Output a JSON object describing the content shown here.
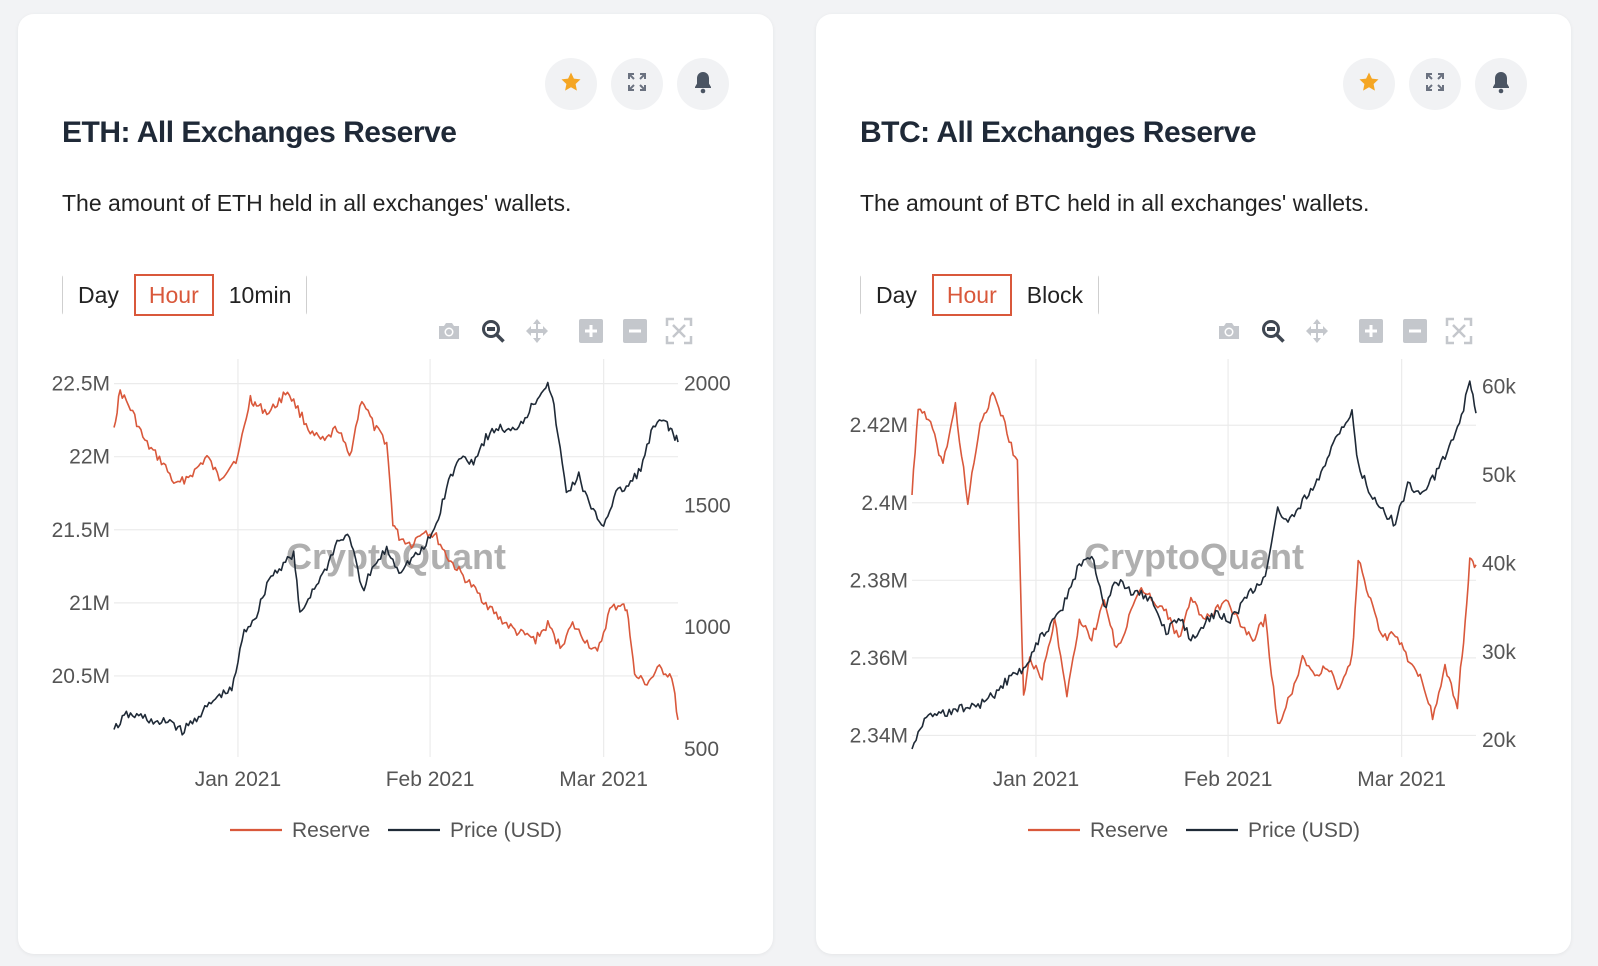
{
  "watermark": "CryptoQuant",
  "colors": {
    "reserve": "#d9583b",
    "price": "#1f2a37",
    "accent": "#d9583b",
    "star": "#f5a623"
  },
  "icons": {
    "actions": [
      "star-icon",
      "expand-icon",
      "bell-icon"
    ],
    "modebar": [
      "camera-icon",
      "zoom-icon",
      "pan-icon",
      "zoom-in-icon",
      "zoom-out-icon",
      "autoscale-icon"
    ]
  },
  "cards": [
    {
      "title": "ETH: All Exchanges Reserve",
      "description": "The amount of ETH held in all exchanges' wallets.",
      "intervals": [
        "Day",
        "Hour",
        "10min"
      ],
      "active_interval": "Hour",
      "legend": [
        "Reserve",
        "Price (USD)"
      ]
    },
    {
      "title": "BTC: All Exchanges Reserve",
      "description": "The amount of BTC held in all exchanges' wallets.",
      "intervals": [
        "Day",
        "Hour",
        "Block"
      ],
      "active_interval": "Hour",
      "legend": [
        "Reserve",
        "Price (USD)"
      ]
    }
  ],
  "chart_data": [
    {
      "type": "line",
      "x_ticks": [
        "Jan 2021",
        "Feb 2021",
        "Mar 2021"
      ],
      "x_range": [
        "2020-12-12",
        "2021-03-13"
      ],
      "y_left": {
        "ticks": [
          "20.5M",
          "21M",
          "21.5M",
          "22M",
          "22.5M"
        ],
        "tick_values": [
          20.5,
          21.0,
          21.5,
          22.0,
          22.5
        ],
        "range": [
          20.0,
          22.6
        ],
        "unit": "M"
      },
      "y_right": {
        "ticks": [
          "500",
          "1000",
          "1500",
          "2000"
        ],
        "tick_values": [
          500,
          1000,
          1500,
          2000
        ],
        "range": [
          500,
          2060
        ]
      },
      "grid": true,
      "legend_position": "bottom",
      "series": [
        {
          "name": "Reserve",
          "axis": "left",
          "x": [
            "2020-12-12",
            "2020-12-13",
            "2020-12-15",
            "2020-12-17",
            "2020-12-20",
            "2020-12-22",
            "2020-12-25",
            "2020-12-27",
            "2020-12-29",
            "2021-01-01",
            "2021-01-03",
            "2021-01-04",
            "2021-01-06",
            "2021-01-09",
            "2021-01-11",
            "2021-01-13",
            "2021-01-15",
            "2021-01-17",
            "2021-01-19",
            "2021-01-21",
            "2021-01-23",
            "2021-01-25",
            "2021-01-26",
            "2021-01-27",
            "2021-01-29",
            "2021-01-31",
            "2021-02-02",
            "2021-02-04",
            "2021-02-06",
            "2021-02-09",
            "2021-02-12",
            "2021-02-15",
            "2021-02-18",
            "2021-02-20",
            "2021-02-22",
            "2021-02-24",
            "2021-02-26",
            "2021-02-28",
            "2021-03-02",
            "2021-03-04",
            "2021-03-05",
            "2021-03-06",
            "2021-03-08",
            "2021-03-10",
            "2021-03-12",
            "2021-03-13"
          ],
          "y": [
            22.2,
            22.45,
            22.3,
            22.1,
            21.95,
            21.8,
            21.9,
            22.0,
            21.85,
            22.0,
            22.4,
            22.35,
            22.3,
            22.45,
            22.3,
            22.15,
            22.1,
            22.2,
            22.0,
            22.4,
            22.2,
            22.1,
            21.55,
            21.45,
            21.4,
            21.5,
            21.45,
            21.3,
            21.2,
            21.05,
            20.9,
            20.8,
            20.75,
            20.85,
            20.7,
            20.85,
            20.75,
            20.65,
            20.95,
            21.0,
            20.9,
            20.5,
            20.45,
            20.55,
            20.5,
            20.2
          ]
        },
        {
          "name": "Price (USD)",
          "axis": "right",
          "x": [
            "2020-12-12",
            "2020-12-14",
            "2020-12-17",
            "2020-12-19",
            "2020-12-21",
            "2020-12-23",
            "2020-12-25",
            "2020-12-27",
            "2020-12-29",
            "2020-12-31",
            "2021-01-02",
            "2021-01-04",
            "2021-01-06",
            "2021-01-08",
            "2021-01-10",
            "2021-01-11",
            "2021-01-13",
            "2021-01-15",
            "2021-01-17",
            "2021-01-19",
            "2021-01-21",
            "2021-01-23",
            "2021-01-25",
            "2021-01-27",
            "2021-01-29",
            "2021-01-31",
            "2021-02-02",
            "2021-02-04",
            "2021-02-06",
            "2021-02-08",
            "2021-02-10",
            "2021-02-12",
            "2021-02-14",
            "2021-02-16",
            "2021-02-18",
            "2021-02-20",
            "2021-02-21",
            "2021-02-23",
            "2021-02-25",
            "2021-02-27",
            "2021-03-01",
            "2021-03-03",
            "2021-03-05",
            "2021-03-07",
            "2021-03-09",
            "2021-03-11",
            "2021-03-12",
            "2021-03-13"
          ],
          "y": [
            580,
            640,
            630,
            600,
            620,
            570,
            620,
            670,
            720,
            740,
            980,
            1050,
            1200,
            1250,
            1300,
            1050,
            1150,
            1230,
            1350,
            1380,
            1150,
            1250,
            1320,
            1230,
            1280,
            1320,
            1420,
            1600,
            1700,
            1680,
            1780,
            1820,
            1800,
            1850,
            1930,
            2010,
            1900,
            1550,
            1620,
            1480,
            1420,
            1550,
            1580,
            1650,
            1820,
            1850,
            1800,
            1760
          ]
        }
      ]
    },
    {
      "type": "line",
      "x_ticks": [
        "Jan 2021",
        "Feb 2021",
        "Mar 2021"
      ],
      "x_range": [
        "2020-12-12",
        "2021-03-13"
      ],
      "y_left": {
        "ticks": [
          "2.34M",
          "2.36M",
          "2.38M",
          "2.4M",
          "2.42M"
        ],
        "tick_values": [
          2.34,
          2.36,
          2.38,
          2.4,
          2.42
        ],
        "range": [
          2.3365,
          2.4345
        ],
        "unit": "M"
      },
      "y_right": {
        "ticks": [
          "20k",
          "30k",
          "40k",
          "50k",
          "60k"
        ],
        "tick_values": [
          20000,
          30000,
          40000,
          50000,
          60000
        ],
        "range": [
          19000,
          62000
        ]
      },
      "grid": true,
      "legend_position": "bottom",
      "series": [
        {
          "name": "Reserve",
          "axis": "left",
          "x": [
            "2020-12-12",
            "2020-12-13",
            "2020-12-15",
            "2020-12-17",
            "2020-12-19",
            "2020-12-21",
            "2020-12-23",
            "2020-12-25",
            "2020-12-27",
            "2020-12-29",
            "2020-12-30",
            "2020-12-31",
            "2021-01-02",
            "2021-01-04",
            "2021-01-06",
            "2021-01-08",
            "2021-01-10",
            "2021-01-12",
            "2021-01-14",
            "2021-01-16",
            "2021-01-18",
            "2021-01-20",
            "2021-01-22",
            "2021-01-24",
            "2021-01-26",
            "2021-01-28",
            "2021-01-30",
            "2021-02-01",
            "2021-02-03",
            "2021-02-05",
            "2021-02-07",
            "2021-02-09",
            "2021-02-11",
            "2021-02-13",
            "2021-02-15",
            "2021-02-17",
            "2021-02-19",
            "2021-02-21",
            "2021-02-22",
            "2021-02-24",
            "2021-02-26",
            "2021-02-28",
            "2021-03-02",
            "2021-03-04",
            "2021-03-06",
            "2021-03-08",
            "2021-03-10",
            "2021-03-11",
            "2021-03-12",
            "2021-03-13"
          ],
          "y": [
            2.402,
            2.425,
            2.42,
            2.41,
            2.425,
            2.4,
            2.42,
            2.428,
            2.42,
            2.41,
            2.35,
            2.36,
            2.355,
            2.37,
            2.35,
            2.37,
            2.365,
            2.375,
            2.362,
            2.37,
            2.378,
            2.375,
            2.372,
            2.365,
            2.375,
            2.37,
            2.372,
            2.375,
            2.368,
            2.365,
            2.37,
            2.343,
            2.35,
            2.36,
            2.355,
            2.358,
            2.352,
            2.36,
            2.385,
            2.375,
            2.365,
            2.366,
            2.36,
            2.355,
            2.345,
            2.358,
            2.348,
            2.365,
            2.385,
            2.384
          ]
        },
        {
          "name": "Price (USD)",
          "axis": "right",
          "x": [
            "2020-12-12",
            "2020-12-14",
            "2020-12-17",
            "2020-12-19",
            "2020-12-21",
            "2020-12-23",
            "2020-12-25",
            "2020-12-27",
            "2020-12-29",
            "2020-12-31",
            "2021-01-02",
            "2021-01-04",
            "2021-01-06",
            "2021-01-08",
            "2021-01-10",
            "2021-01-12",
            "2021-01-14",
            "2021-01-16",
            "2021-01-18",
            "2021-01-20",
            "2021-01-22",
            "2021-01-24",
            "2021-01-26",
            "2021-01-28",
            "2021-01-30",
            "2021-02-01",
            "2021-02-03",
            "2021-02-05",
            "2021-02-07",
            "2021-02-09",
            "2021-02-11",
            "2021-02-13",
            "2021-02-15",
            "2021-02-17",
            "2021-02-19",
            "2021-02-21",
            "2021-02-22",
            "2021-02-24",
            "2021-02-26",
            "2021-02-28",
            "2021-03-02",
            "2021-03-04",
            "2021-03-06",
            "2021-03-08",
            "2021-03-10",
            "2021-03-12",
            "2021-03-13"
          ],
          "y": [
            19000,
            22500,
            23000,
            23500,
            23800,
            24000,
            25000,
            26500,
            27500,
            29000,
            32000,
            33500,
            36000,
            40000,
            41000,
            35000,
            38000,
            37000,
            36500,
            35500,
            32000,
            34000,
            31500,
            33000,
            34500,
            33500,
            35000,
            37000,
            38500,
            46000,
            45000,
            47000,
            48500,
            52000,
            55000,
            57000,
            51000,
            48000,
            46000,
            44500,
            49000,
            48000,
            49500,
            52000,
            55000,
            60500,
            57000
          ]
        }
      ]
    }
  ]
}
